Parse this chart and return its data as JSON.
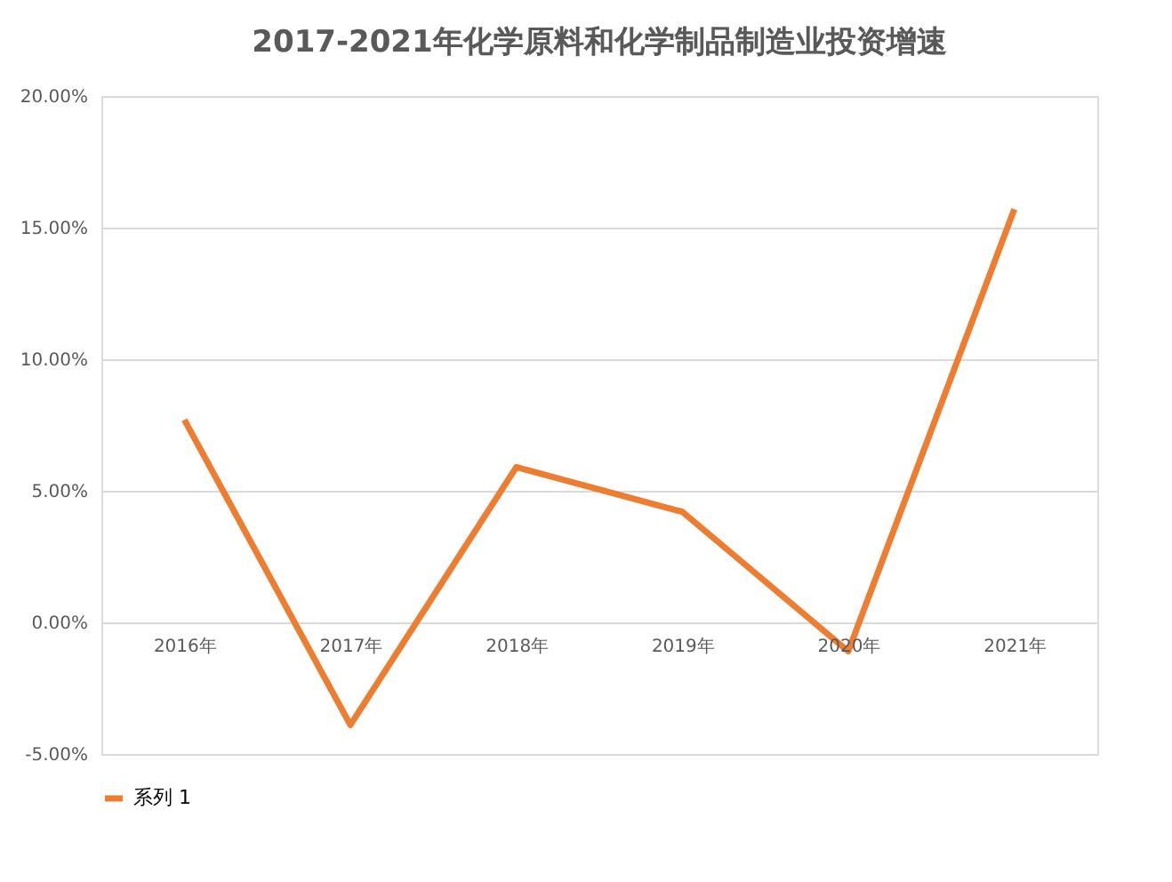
{
  "chart_data": {
    "type": "line",
    "title": "2017-2021年化学原料和化学制品制造业投资增速",
    "categories": [
      "2016年",
      "2017年",
      "2018年",
      "2019年",
      "2020年",
      "2021年"
    ],
    "series": [
      {
        "name": "系列 1",
        "color": "#ed7d31",
        "values": [
          7.7,
          -3.9,
          5.9,
          4.2,
          -1.1,
          15.7
        ]
      }
    ],
    "ylim": [
      -5,
      20
    ],
    "yticks": [
      {
        "value": -5,
        "label": "-5.00%"
      },
      {
        "value": 0,
        "label": "0.00%"
      },
      {
        "value": 5,
        "label": "5.00%"
      },
      {
        "value": 10,
        "label": "10.00%"
      },
      {
        "value": 15,
        "label": "15.00%"
      },
      {
        "value": 20,
        "label": "20.00%"
      }
    ],
    "grid": "y",
    "legend": "bottom",
    "marker": "none",
    "line_style": "solid"
  }
}
